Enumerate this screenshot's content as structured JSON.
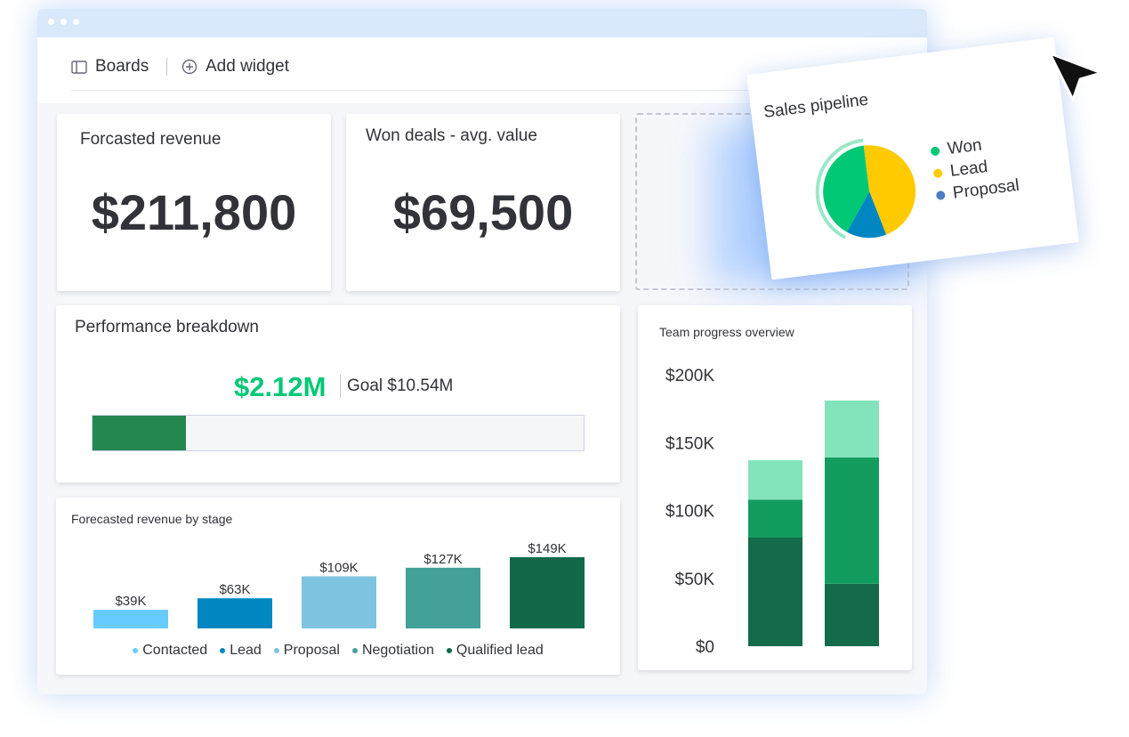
{
  "toolbar": {
    "boards_label": "Boards",
    "add_widget_label": "Add widget"
  },
  "widgets": {
    "forecasted_revenue": {
      "title": "Forcasted revenue",
      "value": "$211,800"
    },
    "won_deals": {
      "title": "Won deals - avg. value",
      "value": "$69,500"
    },
    "performance": {
      "title": "Performance breakdown",
      "value": "$2.12M",
      "goal": "Goal $10.54M",
      "progress": 0.19
    },
    "team_progress": {
      "title": "Team progress overview"
    },
    "revenue_by_stage": {
      "title": "Forecasted revenue by stage"
    },
    "sales_pipeline": {
      "title": "Sales pipeline"
    }
  },
  "colors": {
    "won": "#00c875",
    "lead": "#ffcb00",
    "proposal": "#4d7cc2",
    "pie_blue": "#0086c0",
    "progress_fill": "#258750"
  },
  "chart_data": [
    {
      "id": "revenue_by_stage",
      "type": "bar",
      "title": "Forecasted revenue by stage",
      "categories": [
        "Contacted",
        "Lead",
        "Proposal",
        "Negotiation",
        "Qualified lead"
      ],
      "values": [
        39,
        63,
        109,
        127,
        149
      ],
      "labels": [
        "$39K",
        "$63K",
        "$109K",
        "$127K",
        "$149K"
      ],
      "colors": [
        "#66ccff",
        "#0086c0",
        "#7ec3e0",
        "#44a19a",
        "#12694a"
      ],
      "legend": "bottom"
    },
    {
      "id": "team_progress",
      "type": "bar",
      "stacked": true,
      "title": "Team progress overview",
      "yticks": [
        "$200K",
        "$150K",
        "$100K",
        "$50K",
        "$0"
      ],
      "ylim": [
        0,
        200
      ],
      "bars": [
        {
          "segments": [
            80,
            28,
            29
          ]
        },
        {
          "segments": [
            46,
            93,
            42
          ]
        }
      ],
      "segment_colors": [
        "#136b4a",
        "#129d5f",
        "#83e3bb"
      ]
    },
    {
      "id": "sales_pipeline",
      "type": "pie",
      "title": "Sales pipeline",
      "legend_labels": [
        "Won",
        "Lead",
        "Proposal"
      ],
      "legend_colors": [
        "#00c875",
        "#ffcb00",
        "#4d7cc2"
      ],
      "slices": [
        {
          "value": 40,
          "color": "#00c875"
        },
        {
          "value": 46,
          "color": "#ffcb00"
        },
        {
          "value": 14,
          "color": "#0086c0"
        }
      ],
      "legend": "right"
    }
  ]
}
